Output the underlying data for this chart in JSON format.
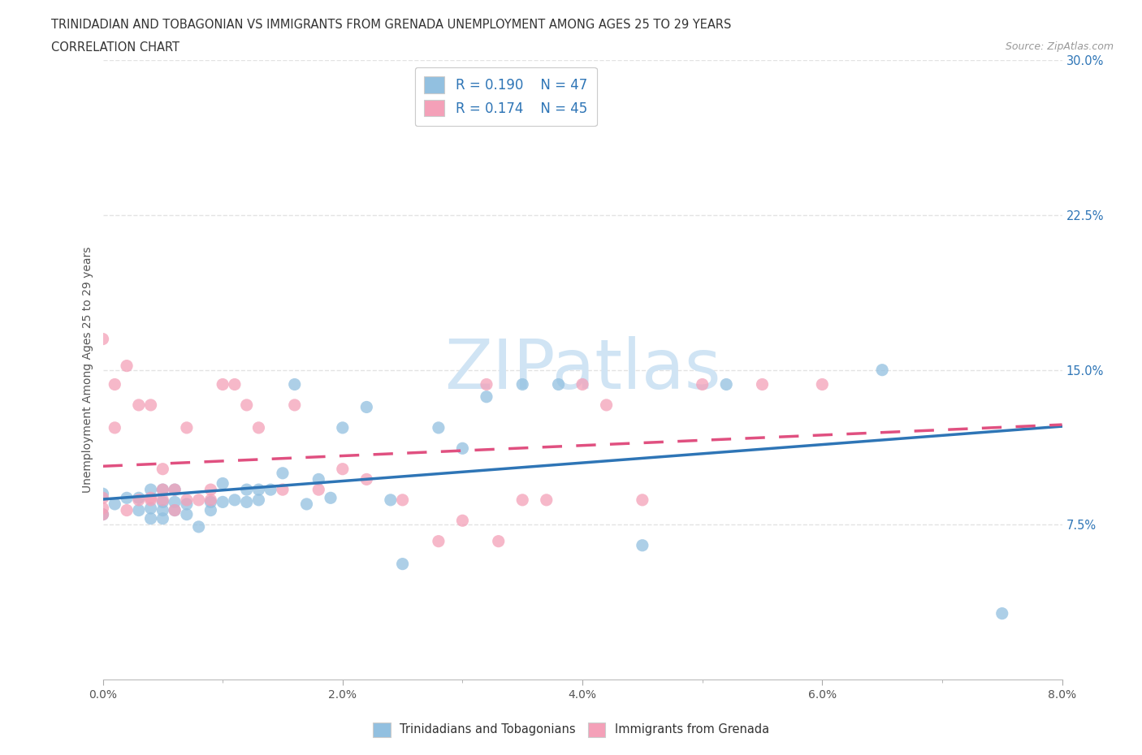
{
  "title_line1": "TRINIDADIAN AND TOBAGONIAN VS IMMIGRANTS FROM GRENADA UNEMPLOYMENT AMONG AGES 25 TO 29 YEARS",
  "title_line2": "CORRELATION CHART",
  "source_text": "Source: ZipAtlas.com",
  "ylabel": "Unemployment Among Ages 25 to 29 years",
  "xlim": [
    0.0,
    0.08
  ],
  "ylim": [
    0.0,
    0.3
  ],
  "xtick_labels": [
    "0.0%",
    "",
    "2.0%",
    "",
    "4.0%",
    "",
    "6.0%",
    "",
    "8.0%"
  ],
  "xtick_vals": [
    0.0,
    0.01,
    0.02,
    0.03,
    0.04,
    0.05,
    0.06,
    0.07,
    0.08
  ],
  "ytick_labels": [
    "7.5%",
    "15.0%",
    "22.5%",
    "30.0%"
  ],
  "ytick_vals": [
    0.075,
    0.15,
    0.225,
    0.3
  ],
  "blue_color": "#92C0E0",
  "pink_color": "#F4A0B8",
  "trend_blue": "#2E75B6",
  "trend_pink": "#E05080",
  "watermark_color": "#D0E4F4",
  "legend_R1": "R = 0.190",
  "legend_N1": "N = 47",
  "legend_R2": "R = 0.174",
  "legend_N2": "N = 45",
  "blue_scatter_x": [
    0.0,
    0.0,
    0.001,
    0.002,
    0.003,
    0.003,
    0.004,
    0.004,
    0.004,
    0.005,
    0.005,
    0.005,
    0.005,
    0.006,
    0.006,
    0.006,
    0.007,
    0.007,
    0.008,
    0.009,
    0.009,
    0.01,
    0.01,
    0.011,
    0.012,
    0.012,
    0.013,
    0.013,
    0.014,
    0.015,
    0.016,
    0.017,
    0.018,
    0.019,
    0.02,
    0.022,
    0.024,
    0.025,
    0.028,
    0.03,
    0.032,
    0.035,
    0.038,
    0.045,
    0.052,
    0.065,
    0.075
  ],
  "blue_scatter_y": [
    0.08,
    0.09,
    0.085,
    0.088,
    0.082,
    0.088,
    0.078,
    0.083,
    0.092,
    0.078,
    0.082,
    0.086,
    0.092,
    0.082,
    0.086,
    0.092,
    0.08,
    0.085,
    0.074,
    0.082,
    0.086,
    0.086,
    0.095,
    0.087,
    0.086,
    0.092,
    0.087,
    0.092,
    0.092,
    0.1,
    0.143,
    0.085,
    0.097,
    0.088,
    0.122,
    0.132,
    0.087,
    0.056,
    0.122,
    0.112,
    0.137,
    0.143,
    0.143,
    0.065,
    0.143,
    0.15,
    0.032
  ],
  "pink_scatter_x": [
    0.0,
    0.0,
    0.0,
    0.0,
    0.001,
    0.001,
    0.002,
    0.002,
    0.003,
    0.003,
    0.004,
    0.004,
    0.004,
    0.005,
    0.005,
    0.005,
    0.006,
    0.006,
    0.007,
    0.007,
    0.008,
    0.009,
    0.009,
    0.01,
    0.011,
    0.012,
    0.013,
    0.015,
    0.016,
    0.018,
    0.02,
    0.022,
    0.025,
    0.028,
    0.03,
    0.032,
    0.033,
    0.035,
    0.037,
    0.04,
    0.042,
    0.045,
    0.05,
    0.055,
    0.06
  ],
  "pink_scatter_y": [
    0.08,
    0.083,
    0.088,
    0.165,
    0.122,
    0.143,
    0.082,
    0.152,
    0.087,
    0.133,
    0.087,
    0.133,
    0.088,
    0.087,
    0.092,
    0.102,
    0.082,
    0.092,
    0.087,
    0.122,
    0.087,
    0.087,
    0.092,
    0.143,
    0.143,
    0.133,
    0.122,
    0.092,
    0.133,
    0.092,
    0.102,
    0.097,
    0.087,
    0.067,
    0.077,
    0.143,
    0.067,
    0.087,
    0.087,
    0.143,
    0.133,
    0.087,
    0.143,
    0.143,
    0.143
  ],
  "background_color": "#FFFFFF",
  "grid_color": "#DDDDDD"
}
